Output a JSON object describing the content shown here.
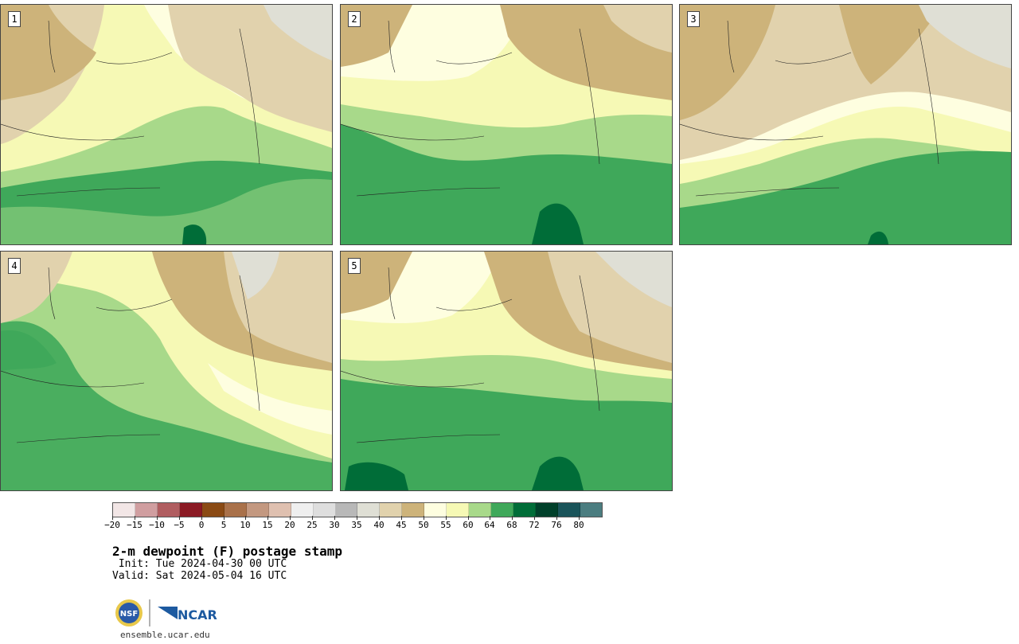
{
  "colors": {
    "ramp": [
      "#f2e6e6",
      "#d09ea0",
      "#b05d60",
      "#8b1a24",
      "#8a4a14",
      "#a9714a",
      "#c39880",
      "#dfc0b0",
      "#efefef",
      "#dedede",
      "#b8b8b8",
      "#dfdfd5",
      "#e1d2ad",
      "#cdb37a",
      "#fefee0",
      "#f6f9b5",
      "#a8d98a",
      "#3fa85a",
      "#006d38",
      "#00402a",
      "#1a545a",
      "#4b7d80"
    ],
    "map": {
      "dry_tan": "#cdb37a",
      "light_tan": "#e1d2ad",
      "gray": "#dfdfd5",
      "cream": "#fefee0",
      "pale_yellow": "#f6f9b5",
      "light_green": "#a8d98a",
      "mid_green": "#3fa85a",
      "dark_green": "#006d38",
      "water": "#c8c8c8"
    }
  },
  "panels": [
    {
      "label": "1"
    },
    {
      "label": "2"
    },
    {
      "label": "3"
    },
    {
      "label": "4"
    },
    {
      "label": "5"
    }
  ],
  "legend": {
    "ticks": [
      "−20",
      "−15",
      "−10",
      "−5",
      "0",
      "5",
      "10",
      "15",
      "20",
      "25",
      "30",
      "35",
      "40",
      "45",
      "50",
      "55",
      "60",
      "64",
      "68",
      "72",
      "76",
      "80"
    ]
  },
  "title": "2-m dewpoint (F) postage stamp",
  "init": " Init: Tue 2024-04-30 00 UTC",
  "valid": "Valid: Sat 2024-05-04 16 UTC",
  "logos": {
    "nsf_text": "NSF",
    "ncar_text": "NCAR"
  },
  "site": "ensemble.ucar.edu"
}
